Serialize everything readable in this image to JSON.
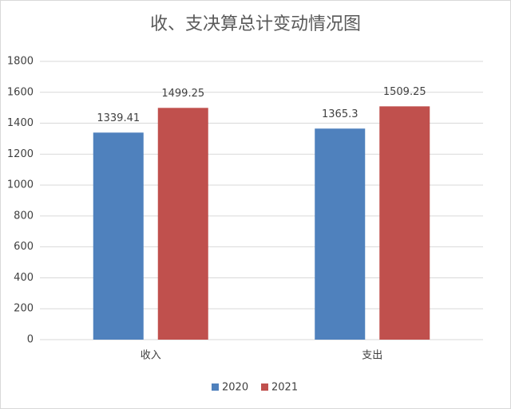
{
  "chart_data": {
    "type": "bar",
    "title": "收、支决算总计变动情况图",
    "categories": [
      "收入",
      "支出"
    ],
    "series": [
      {
        "name": "2020",
        "color": "#4f81bd",
        "values": [
          1339.41,
          1365.3
        ]
      },
      {
        "name": "2021",
        "color": "#c0504d",
        "values": [
          1499.25,
          1509.25
        ]
      }
    ],
    "ylim": [
      0,
      1800
    ],
    "yticks": [
      0,
      200,
      400,
      600,
      800,
      1000,
      1200,
      1400,
      1600,
      1800
    ],
    "grid": true,
    "legend": "bottom"
  }
}
